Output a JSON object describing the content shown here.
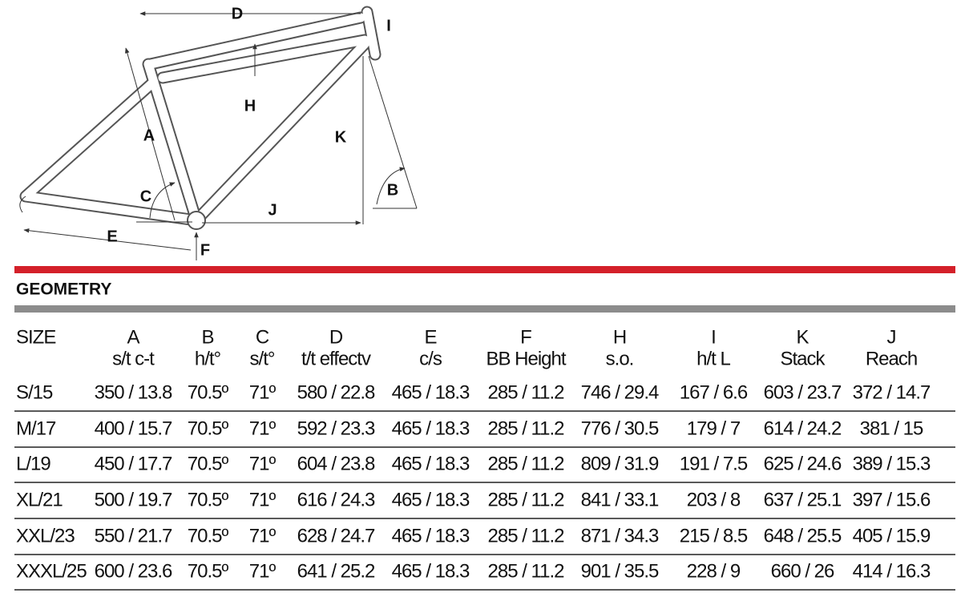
{
  "diagram": {
    "labels": [
      "D",
      "I",
      "H",
      "A",
      "K",
      "C",
      "B",
      "J",
      "E",
      "F"
    ]
  },
  "section_title": "GEOMETRY",
  "table": {
    "header": [
      {
        "code": "SIZE"
      },
      {
        "code": "A",
        "name": "s/t c-t"
      },
      {
        "code": "B",
        "name": "h/t°"
      },
      {
        "code": "C",
        "name": "s/t°"
      },
      {
        "code": "D",
        "name": "t/t effectv"
      },
      {
        "code": "E",
        "name": "c/s"
      },
      {
        "code": "F",
        "name": "BB Height"
      },
      {
        "code": "H",
        "name": "s.o."
      },
      {
        "code": "I",
        "name": "h/t L"
      },
      {
        "code": "K",
        "name": "Stack"
      },
      {
        "code": "J",
        "name": "Reach"
      }
    ],
    "rows": [
      [
        "S/15",
        "350 / 13.8",
        "70.5º",
        "71º",
        "580 / 22.8",
        "465 / 18.3",
        "285 / 11.2",
        "746 / 29.4",
        "167 / 6.6",
        "603 / 23.7",
        "372 / 14.7"
      ],
      [
        "M/17",
        "400 / 15.7",
        "70.5º",
        "71º",
        "592 / 23.3",
        "465 / 18.3",
        "285 / 11.2",
        "776 / 30.5",
        "179 / 7",
        "614 / 24.2",
        "381 / 15"
      ],
      [
        "L/19",
        "450 / 17.7",
        "70.5º",
        "71º",
        "604 / 23.8",
        "465 / 18.3",
        "285 / 11.2",
        "809 / 31.9",
        "191 / 7.5",
        "625 / 24.6",
        "389 / 15.3"
      ],
      [
        "XL/21",
        "500 / 19.7",
        "70.5º",
        "71º",
        "616 / 24.3",
        "465 / 18.3",
        "285 / 11.2",
        "841 / 33.1",
        "203 / 8",
        "637 / 25.1",
        "397 / 15.6"
      ],
      [
        "XXL/23",
        "550 / 21.7",
        "70.5º",
        "71º",
        "628 / 24.7",
        "465 / 18.3",
        "285 / 11.2",
        "871 / 34.3",
        "215 / 8.5",
        "648 / 25.5",
        "405 / 15.9"
      ],
      [
        "XXXL/25",
        "600 / 23.6",
        "70.5º",
        "71º",
        "641 / 25.2",
        "465 / 18.3",
        "285 / 11.2",
        "901 / 35.5",
        "228 / 9",
        "660 / 26",
        "414 / 16.3"
      ]
    ]
  }
}
